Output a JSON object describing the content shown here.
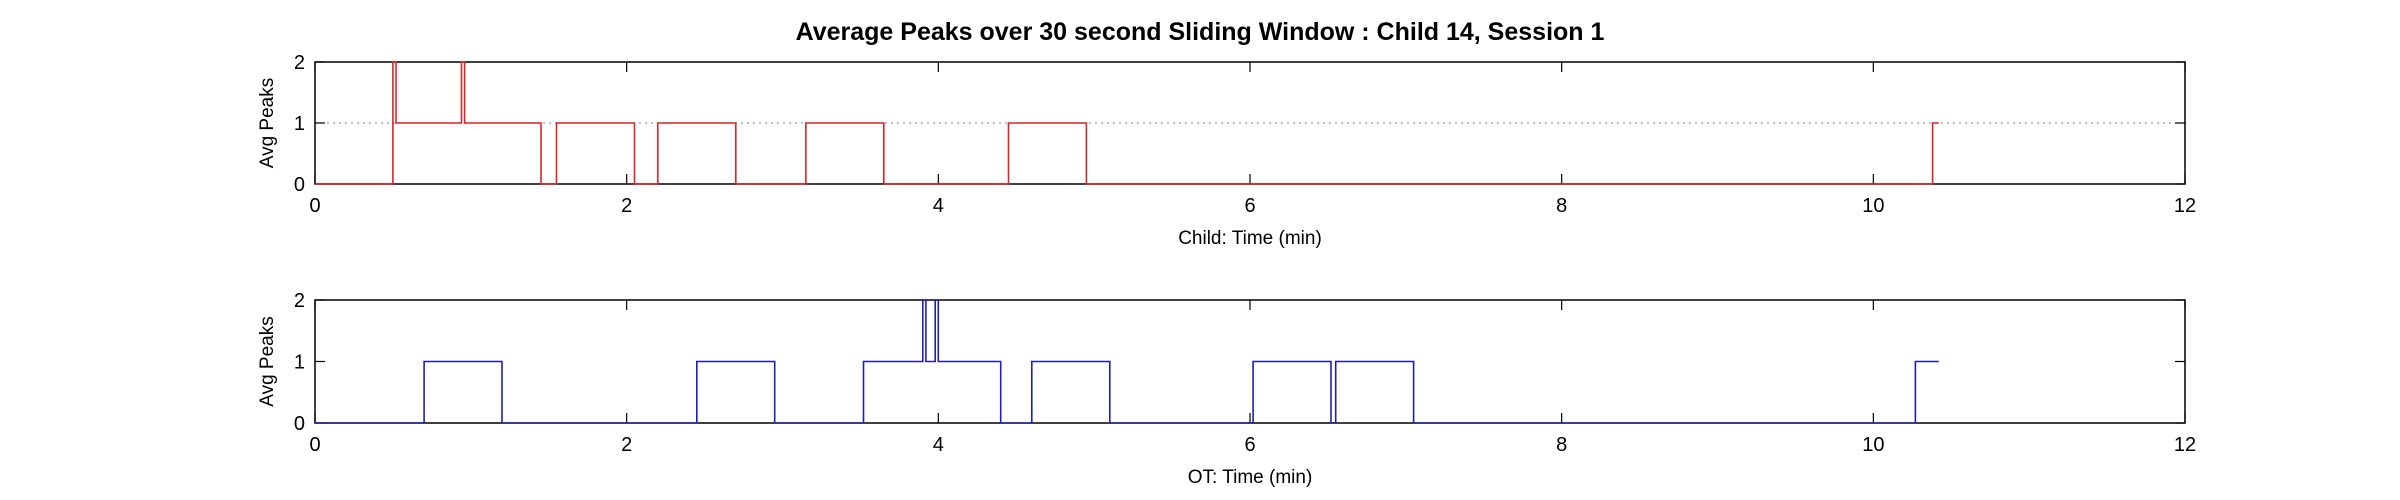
{
  "figure": {
    "title": "Average Peaks over 30 second Sliding Window : Child 14, Session 1"
  },
  "chart_data": [
    {
      "type": "line",
      "title": "Average Peaks over 30 second Sliding Window : Child 14, Session 1",
      "xlabel": "Child: Time (min)",
      "ylabel": "Avg Peaks",
      "xlim": [
        0,
        12
      ],
      "ylim": [
        0,
        2
      ],
      "xticks": [
        0,
        2,
        4,
        6,
        8,
        10,
        12
      ],
      "yticks": [
        0,
        1,
        2
      ],
      "grid": false,
      "reference_line": {
        "y": 1,
        "style": "dotted"
      },
      "series": [
        {
          "color": "#d62728",
          "x": [
            0,
            0.5,
            0.5,
            0.52,
            0.52,
            0.94,
            0.94,
            0.96,
            0.96,
            1.45,
            1.45,
            1.55,
            1.55,
            2.05,
            2.05,
            2.2,
            2.2,
            2.7,
            2.7,
            3.15,
            3.15,
            3.65,
            3.65,
            4.45,
            4.45,
            4.95,
            4.95,
            10.38,
            10.38,
            10.42
          ],
          "y": [
            0,
            0,
            2,
            2,
            1,
            1,
            2,
            2,
            1,
            1,
            0,
            0,
            1,
            1,
            0,
            0,
            1,
            1,
            0,
            0,
            1,
            1,
            0,
            0,
            1,
            1,
            0,
            0,
            1,
            1
          ]
        }
      ]
    },
    {
      "type": "line",
      "xlabel": "OT: Time (min)",
      "ylabel": "Avg Peaks",
      "xlim": [
        0,
        12
      ],
      "ylim": [
        0,
        2
      ],
      "xticks": [
        0,
        2,
        4,
        6,
        8,
        10,
        12
      ],
      "yticks": [
        0,
        1,
        2
      ],
      "grid": false,
      "series": [
        {
          "color": "#1f1fb4",
          "x": [
            0,
            0.7,
            0.7,
            1.2,
            1.2,
            2.45,
            2.45,
            2.95,
            2.95,
            3.52,
            3.52,
            3.9,
            3.9,
            3.92,
            3.92,
            3.98,
            3.98,
            4.0,
            4.0,
            4.4,
            4.4,
            4.6,
            4.6,
            5.1,
            5.1,
            6.02,
            6.02,
            6.52,
            6.52,
            6.55,
            6.55,
            7.05,
            7.05,
            10.27,
            10.27,
            10.42
          ],
          "y": [
            0,
            0,
            1,
            1,
            0,
            0,
            1,
            1,
            0,
            0,
            1,
            1,
            2,
            2,
            1,
            1,
            2,
            2,
            1,
            1,
            0,
            0,
            1,
            1,
            0,
            0,
            1,
            1,
            0,
            0,
            1,
            1,
            0,
            0,
            1,
            1
          ]
        }
      ]
    }
  ]
}
